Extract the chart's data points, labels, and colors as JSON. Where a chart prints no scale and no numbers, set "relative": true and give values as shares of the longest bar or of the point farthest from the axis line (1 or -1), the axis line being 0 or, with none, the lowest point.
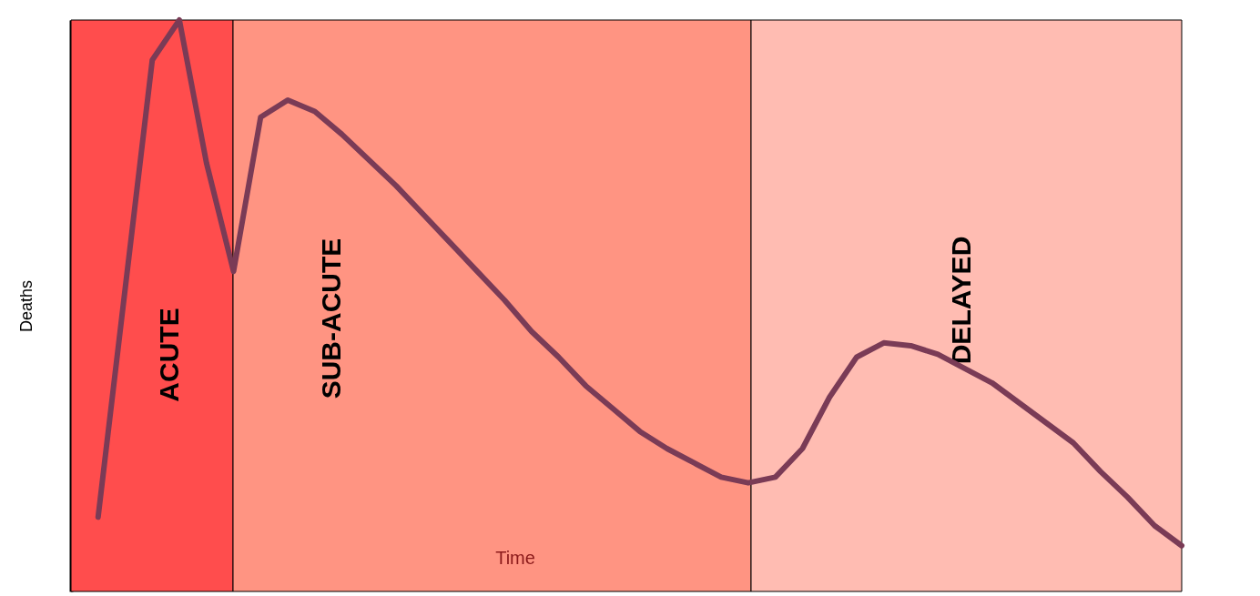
{
  "chart_data": {
    "type": "line",
    "relative": true,
    "xlabel": "Time",
    "ylabel": "Deaths",
    "marker": "none",
    "line_style": "solid",
    "categories": [
      null,
      null,
      null,
      null,
      null,
      null,
      null,
      null,
      null,
      null,
      null,
      null,
      null,
      null,
      null,
      null,
      null,
      null,
      null,
      null,
      null,
      null,
      null,
      null,
      null,
      null,
      null,
      null,
      null,
      null,
      null,
      null,
      null,
      null,
      null,
      null,
      null,
      null,
      null,
      null,
      null,
      null
    ],
    "series": [
      {
        "color": "#7a3b56",
        "values": [
          null,
          0.13,
          0.53,
          0.93,
          1.0,
          0.75,
          0.56,
          0.83,
          0.86,
          0.84,
          0.8,
          0.755,
          0.71,
          0.66,
          0.61,
          0.56,
          0.51,
          0.455,
          0.41,
          0.36,
          0.32,
          0.28,
          0.25,
          0.225,
          0.2,
          0.19,
          0.2,
          0.25,
          0.34,
          0.41,
          0.435,
          0.43,
          0.415,
          0.39,
          0.365,
          0.33,
          0.295,
          0.26,
          0.21,
          0.165,
          0.115,
          0.08
        ]
      }
    ],
    "annotations": [
      "ACUTE",
      "SUB-ACUTE",
      "DELAYED"
    ]
  }
}
